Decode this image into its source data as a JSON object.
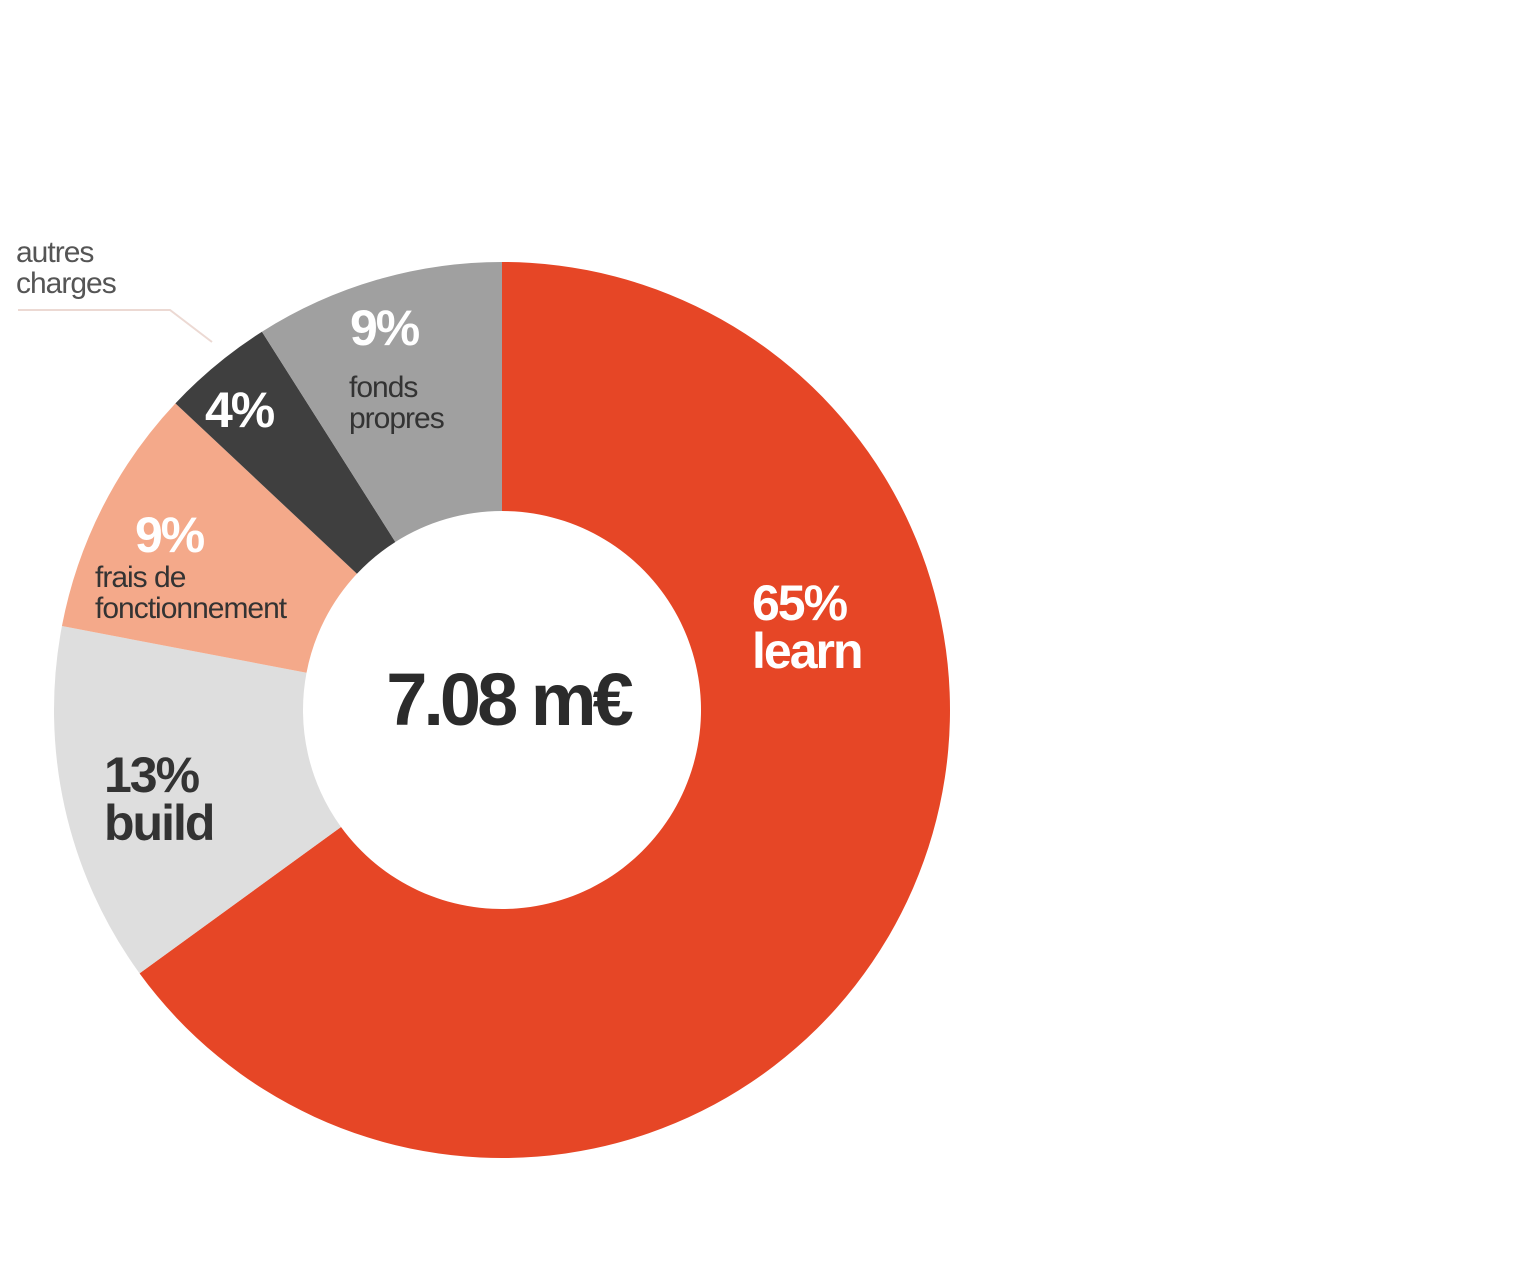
{
  "chart_data": {
    "type": "donut",
    "center_label": "7.08 m€",
    "categories": [
      "learn",
      "build",
      "frais de fonctionnement",
      "autres charges",
      "fonds propres"
    ],
    "values": [
      65,
      13,
      9,
      4,
      9
    ],
    "value_labels": [
      "65%",
      "13%",
      "9%",
      "4%",
      "9%"
    ],
    "colors": [
      "#e64626",
      "#dedede",
      "#f4a98a",
      "#3f3f3f",
      "#a0a0a0"
    ]
  }
}
